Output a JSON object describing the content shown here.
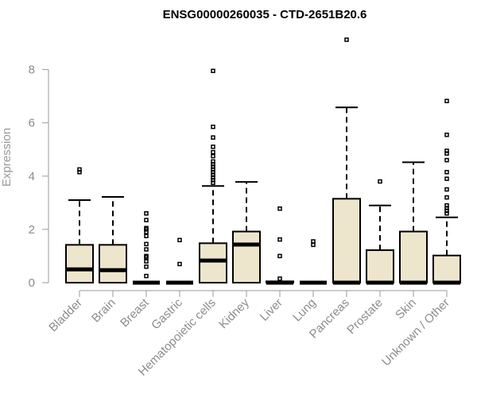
{
  "chart_data": {
    "type": "box",
    "title": "ENSG00000260035 - CTD-2651B20.6",
    "xlabel": "",
    "ylabel": "Expression",
    "ylim": [
      0,
      9.3
    ],
    "yticks": [
      0,
      2,
      4,
      6,
      8
    ],
    "grid": false,
    "legend": "none",
    "box_fill": "#ede5cc",
    "categories": [
      "Bladder",
      "Brain",
      "Breast",
      "Gastric",
      "Hematopoietic cells",
      "Kidney",
      "Liver",
      "Lung",
      "Pancreas",
      "Prostate",
      "Skin",
      "Unknown / Other"
    ],
    "boxes": [
      {
        "min": 0,
        "q1": 0,
        "median": 0.5,
        "q3": 1.42,
        "max": 3.1,
        "outliers": [
          4.15,
          4.25
        ]
      },
      {
        "min": 0,
        "q1": 0,
        "median": 0.47,
        "q3": 1.42,
        "max": 3.22,
        "outliers": []
      },
      {
        "min": 0,
        "q1": 0,
        "median": 0,
        "q3": 0.02,
        "max": 0.02,
        "outliers": [
          0.25,
          0.6,
          0.8,
          0.95,
          1.0,
          1.25,
          1.45,
          1.75,
          1.9,
          2.0,
          2.05,
          2.35,
          2.6
        ]
      },
      {
        "min": 0,
        "q1": 0,
        "median": 0,
        "q3": 0.02,
        "max": 0.02,
        "outliers": [
          0.7,
          1.6
        ]
      },
      {
        "min": 0,
        "q1": 0,
        "median": 0.83,
        "q3": 1.48,
        "max": 3.63,
        "outliers": [
          3.75,
          3.85,
          3.95,
          4.05,
          4.15,
          4.25,
          4.35,
          4.45,
          4.55,
          4.75,
          4.9,
          5.1,
          5.45,
          5.85,
          7.95
        ]
      },
      {
        "min": 0,
        "q1": 0,
        "median": 1.43,
        "q3": 1.92,
        "max": 3.78,
        "outliers": []
      },
      {
        "min": 0,
        "q1": 0,
        "median": 0,
        "q3": 0.05,
        "max": 0.05,
        "outliers": [
          0.15,
          1.0,
          1.62,
          2.78
        ]
      },
      {
        "min": 0,
        "q1": 0,
        "median": 0,
        "q3": 0.02,
        "max": 0.02,
        "outliers": [
          1.42,
          1.55
        ]
      },
      {
        "min": 0,
        "q1": 0,
        "median": 0,
        "q3": 3.15,
        "max": 6.58,
        "outliers": [
          9.12
        ]
      },
      {
        "min": 0,
        "q1": 0,
        "median": 0,
        "q3": 1.22,
        "max": 2.9,
        "outliers": [
          3.8
        ]
      },
      {
        "min": 0,
        "q1": 0,
        "median": 0,
        "q3": 1.92,
        "max": 4.52,
        "outliers": []
      },
      {
        "min": 0,
        "q1": 0,
        "median": 0,
        "q3": 1.02,
        "max": 2.45,
        "outliers": [
          2.6,
          2.7,
          2.8,
          2.9,
          3.2,
          3.5,
          3.9,
          4.15,
          4.6,
          4.85,
          4.95,
          5.55,
          6.82
        ]
      }
    ]
  }
}
